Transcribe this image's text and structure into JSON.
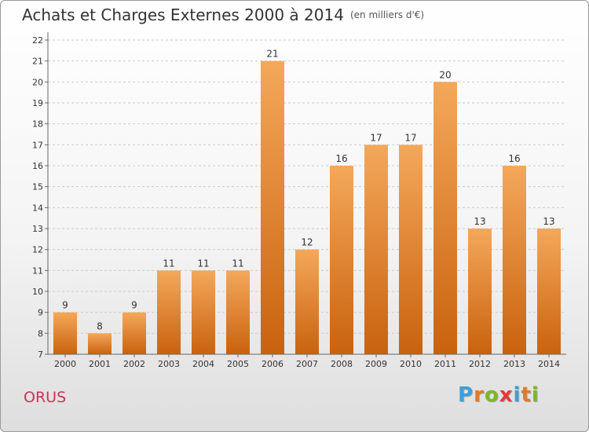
{
  "title": "Achats et Charges Externes 2000 à 2014",
  "unit": "(en milliers d'€)",
  "commune": "ORUS",
  "logo": {
    "letters": [
      "P",
      "r",
      "o",
      "x",
      "i",
      "t",
      "i"
    ],
    "colors": [
      "#3aa0d8",
      "#e07a2a",
      "#7ab828",
      "#e03a3a",
      "#3aa0d8",
      "#e07a2a",
      "#7ab828"
    ]
  },
  "colors": {
    "bar_top": "#f4a85a",
    "bar_bottom": "#c9620e",
    "grid": "#cccccc"
  },
  "chart_data": {
    "type": "bar",
    "title": "Achats et Charges Externes 2000 à 2014",
    "xlabel": "",
    "ylabel": "",
    "categories": [
      "2000",
      "2001",
      "2002",
      "2003",
      "2004",
      "2005",
      "2006",
      "2007",
      "2008",
      "2009",
      "2010",
      "2011",
      "2012",
      "2013",
      "2014"
    ],
    "values": [
      9,
      8,
      9,
      11,
      11,
      11,
      21,
      12,
      16,
      17,
      17,
      20,
      13,
      16,
      13
    ],
    "ylim": [
      7,
      22
    ],
    "yticks": [
      7,
      8,
      9,
      10,
      11,
      12,
      13,
      14,
      15,
      16,
      17,
      18,
      19,
      20,
      21,
      22
    ],
    "grid": "horizontal dashed",
    "data_labels": true
  }
}
